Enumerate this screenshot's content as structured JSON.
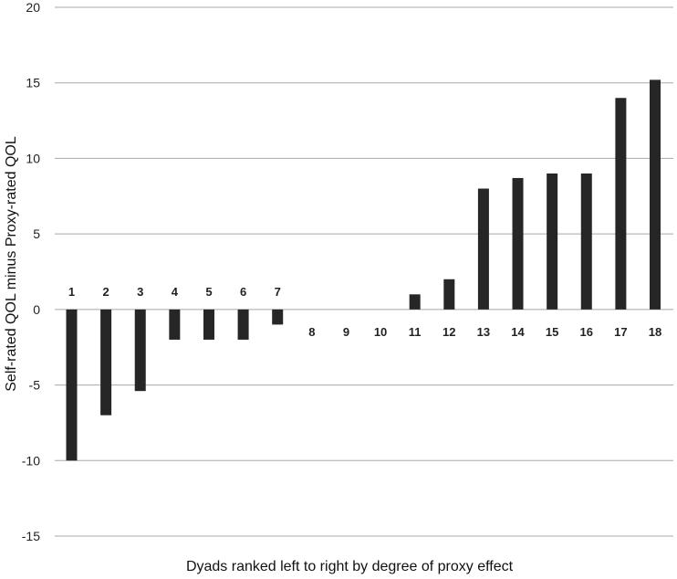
{
  "chart_data": {
    "type": "bar",
    "title": "",
    "xlabel": "Dyads ranked left to right by degree of proxy effect",
    "ylabel": "Self-rated QOL minus Proxy-rated QOL",
    "ylim": [
      -15,
      20
    ],
    "yticks": [
      20,
      15,
      10,
      5,
      0,
      -5,
      -10,
      -15
    ],
    "grid": true,
    "legend": "none",
    "categories": [
      "1",
      "2",
      "3",
      "4",
      "5",
      "6",
      "7",
      "8",
      "9",
      "10",
      "11",
      "12",
      "13",
      "14",
      "15",
      "16",
      "17",
      "18"
    ],
    "values": [
      -10,
      -7,
      -5.4,
      -2,
      -2,
      -2,
      -1,
      0,
      0,
      0,
      1,
      2,
      8,
      8.7,
      9,
      9,
      14,
      15.2
    ],
    "bar_color": "#262626",
    "grid_color": "#a8a8a8"
  }
}
